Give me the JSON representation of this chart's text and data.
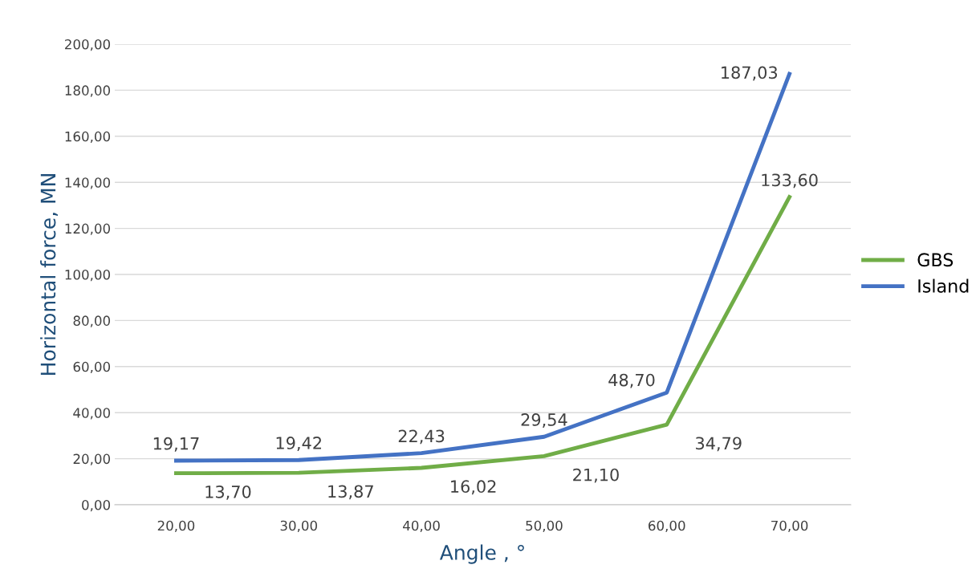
{
  "chart_data": {
    "type": "line",
    "xlabel": "Angle , °",
    "ylabel": "Horizontal force, MN",
    "categories": [
      "20,00",
      "30,00",
      "40,00",
      "50,00",
      "60,00",
      "70,00"
    ],
    "series": [
      {
        "name": "GBS",
        "color": "#70ad47",
        "values": [
          13.7,
          13.87,
          16.02,
          21.1,
          34.79,
          133.6
        ],
        "value_labels": [
          "13,70",
          "13,87",
          "16,02",
          "21,10",
          "34,79",
          "133,60"
        ]
      },
      {
        "name": "Island",
        "color": "#4472c4",
        "values": [
          19.17,
          19.42,
          22.43,
          29.54,
          48.7,
          187.03
        ],
        "value_labels": [
          "19,17",
          "19,42",
          "22,43",
          "29,54",
          "48,70",
          "187,03"
        ]
      }
    ],
    "ylim": [
      0,
      200
    ],
    "yticks": [
      {
        "value": 0,
        "label": "0,00"
      },
      {
        "value": 20,
        "label": "20,00"
      },
      {
        "value": 40,
        "label": "40,00"
      },
      {
        "value": 60,
        "label": "60,00"
      },
      {
        "value": 80,
        "label": "80,00"
      },
      {
        "value": 100,
        "label": "100,00"
      },
      {
        "value": 120,
        "label": "120,00"
      },
      {
        "value": 140,
        "label": "140,00"
      },
      {
        "value": 160,
        "label": "160,00"
      },
      {
        "value": 180,
        "label": "180,00"
      },
      {
        "value": 200,
        "label": "200,00"
      }
    ],
    "grid": "y",
    "legend": "right",
    "marker": "none",
    "line_style": "solid"
  }
}
